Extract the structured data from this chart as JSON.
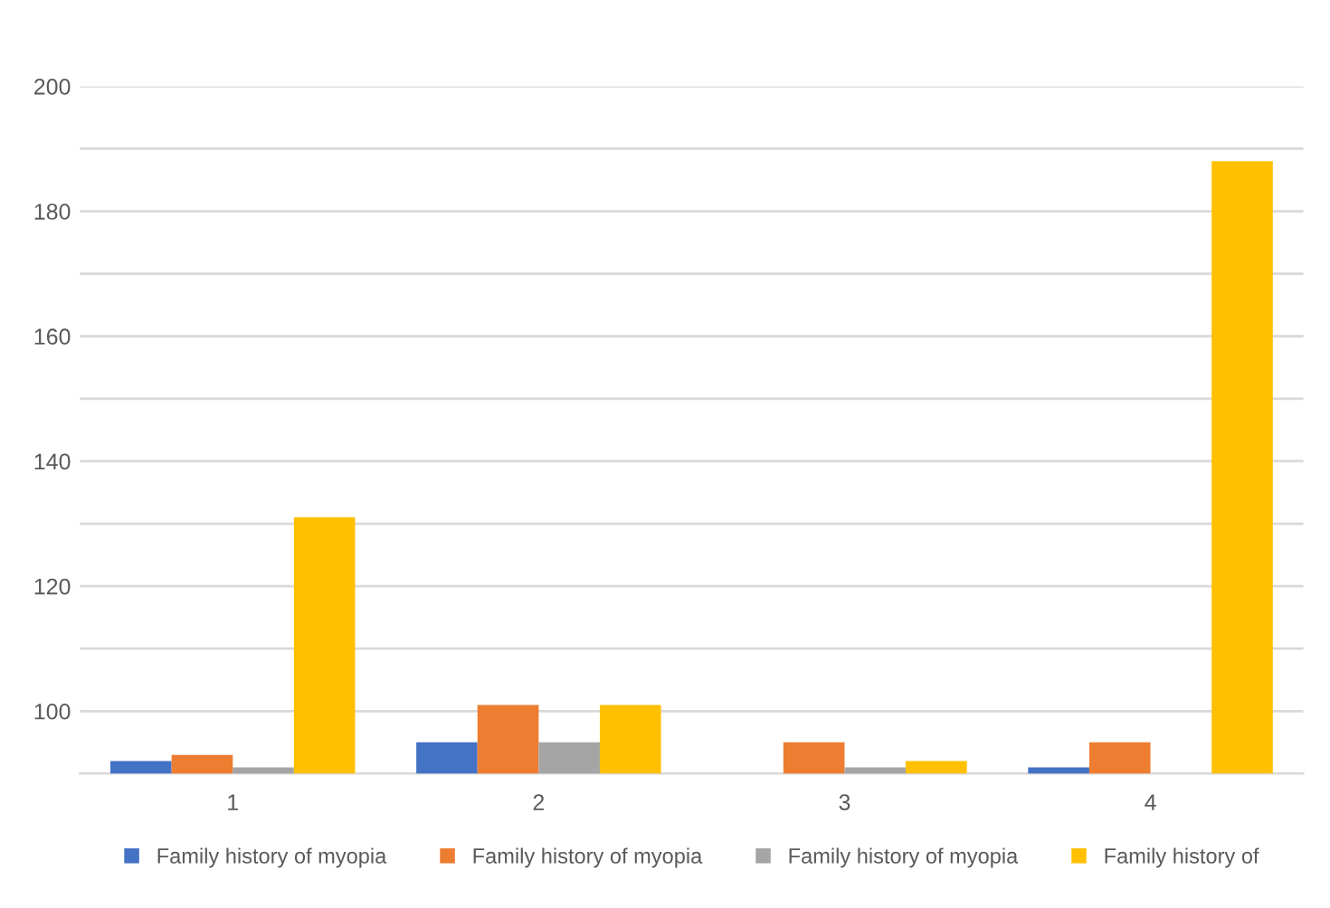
{
  "chart_data": {
    "type": "bar",
    "categories": [
      "1",
      "2",
      "3",
      "4"
    ],
    "series": [
      {
        "name": "Family history of myopia",
        "color": "#4472c4",
        "values": [
          92,
          95,
          null,
          91
        ]
      },
      {
        "name": "Family history of myopia",
        "color": "#ed7d31",
        "values": [
          93,
          101,
          95,
          95
        ]
      },
      {
        "name": "Family history of myopia",
        "color": "#a5a5a5",
        "values": [
          91,
          95,
          91,
          null
        ]
      },
      {
        "name": "Family history of",
        "color": "#ffc000",
        "values": [
          131,
          101,
          92,
          188
        ]
      }
    ],
    "ylim": [
      90,
      200
    ],
    "yticks": [
      {
        "value": 90,
        "label": null
      },
      100,
      {
        "value": 110,
        "label": null
      },
      120,
      {
        "value": 130,
        "label": null
      },
      140,
      {
        "value": 150,
        "label": null
      },
      160,
      {
        "value": 170,
        "label": null
      },
      180,
      {
        "value": 190,
        "label": null
      },
      200
    ],
    "grid": "y",
    "legend": "bottom"
  }
}
